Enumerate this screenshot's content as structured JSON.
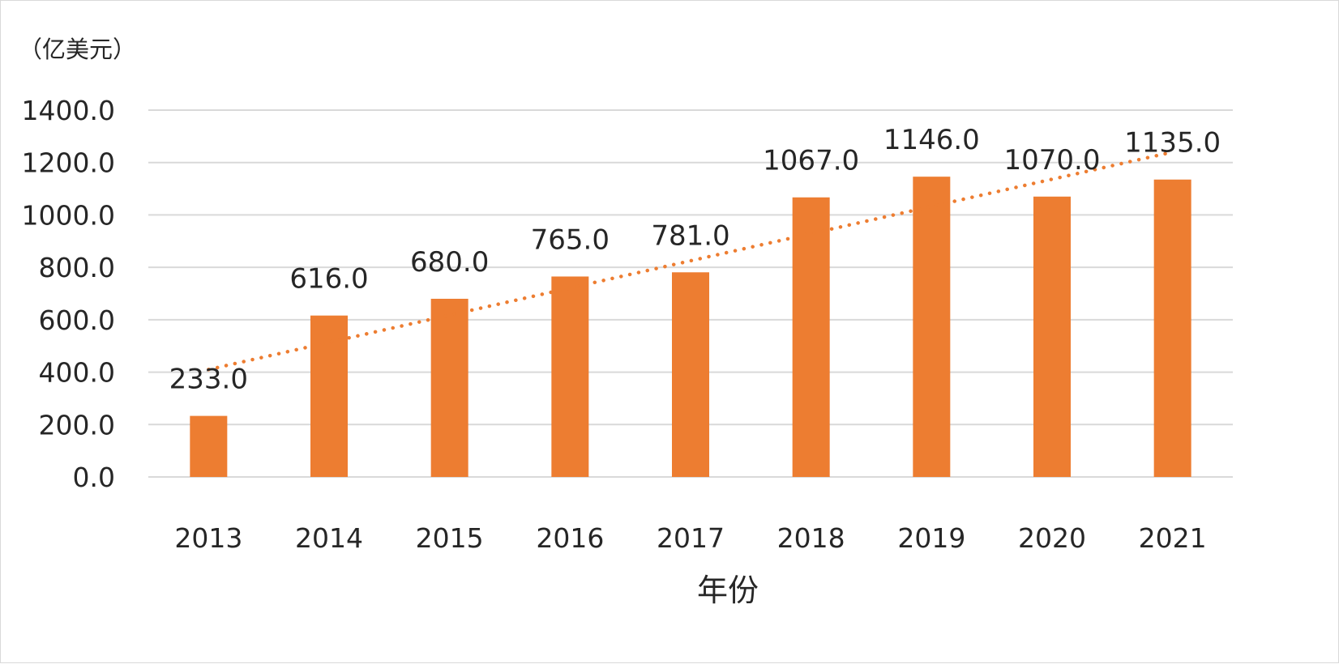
{
  "chart_data": {
    "type": "bar",
    "unit_label": "（亿美元）",
    "xlabel": "年份",
    "ylabel": "",
    "categories": [
      "2013",
      "2014",
      "2015",
      "2016",
      "2017",
      "2018",
      "2019",
      "2020",
      "2021"
    ],
    "values": [
      233.0,
      616.0,
      680.0,
      765.0,
      781.0,
      1067.0,
      1146.0,
      1070.0,
      1135.0
    ],
    "value_labels": [
      "233.0",
      "616.0",
      "680.0",
      "765.0",
      "781.0",
      "1067.0",
      "1146.0",
      "1070.0",
      "1135.0"
    ],
    "ylim": [
      0,
      1400
    ],
    "yticks": [
      0,
      200,
      400,
      600,
      800,
      1000,
      1200,
      1400
    ],
    "ytick_labels": [
      "0.0",
      "200.0",
      "400.0",
      "600.0",
      "800.0",
      "1000.0",
      "1200.0",
      "1400.0"
    ],
    "grid": true,
    "legend": "none",
    "trendline": {
      "type": "linear",
      "style": "dotted",
      "start_value": 410,
      "end_value": 1240
    },
    "colors": {
      "bar": "#ED7D31",
      "trendline": "#ED7D31",
      "grid": "#D9D9D9",
      "text": "#262626"
    }
  }
}
